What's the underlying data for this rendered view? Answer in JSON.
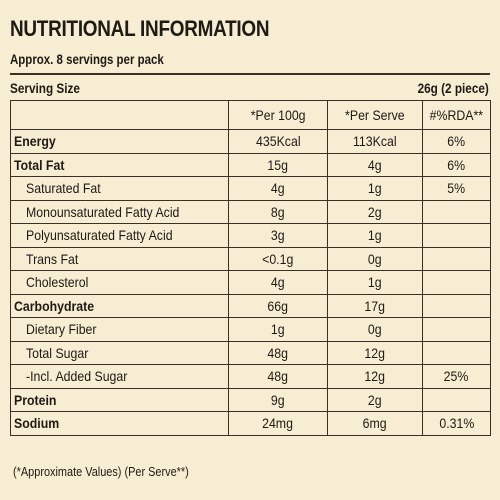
{
  "title": "NUTRITIONAL INFORMATION",
  "subtitle": "Approx. 8 servings per pack",
  "serving": {
    "label": "Serving Size",
    "value": "26g (2 piece)"
  },
  "columns": [
    "",
    "*Per 100g",
    "*Per Serve",
    "#%RDA**"
  ],
  "rows": [
    {
      "name": "Energy",
      "per100": "435Kcal",
      "perServe": "113Kcal",
      "rda": "6%",
      "bold": true,
      "sub": false
    },
    {
      "name": "Total Fat",
      "per100": "15g",
      "perServe": "4g",
      "rda": "6%",
      "bold": true,
      "sub": false
    },
    {
      "name": "Saturated Fat",
      "per100": "4g",
      "perServe": "1g",
      "rda": "5%",
      "bold": false,
      "sub": true
    },
    {
      "name": "Monounsaturated Fatty Acid",
      "per100": "8g",
      "perServe": "2g",
      "rda": "",
      "bold": false,
      "sub": true
    },
    {
      "name": "Polyunsaturated Fatty Acid",
      "per100": "3g",
      "perServe": "1g",
      "rda": "",
      "bold": false,
      "sub": true
    },
    {
      "name": "Trans Fat",
      "per100": "<0.1g",
      "perServe": "0g",
      "rda": "",
      "bold": false,
      "sub": true
    },
    {
      "name": "Cholesterol",
      "per100": "4g",
      "perServe": "1g",
      "rda": "",
      "bold": false,
      "sub": true
    },
    {
      "name": "Carbohydrate",
      "per100": "66g",
      "perServe": "17g",
      "rda": "",
      "bold": true,
      "sub": false
    },
    {
      "name": "Dietary Fiber",
      "per100": "1g",
      "perServe": "0g",
      "rda": "",
      "bold": false,
      "sub": true
    },
    {
      "name": "Total Sugar",
      "per100": "48g",
      "perServe": "12g",
      "rda": "",
      "bold": false,
      "sub": true
    },
    {
      "name": "-Incl. Added Sugar",
      "per100": "48g",
      "perServe": "12g",
      "rda": "25%",
      "bold": false,
      "sub": true
    },
    {
      "name": "Protein",
      "per100": "9g",
      "perServe": "2g",
      "rda": "",
      "bold": true,
      "sub": false
    },
    {
      "name": "Sodium",
      "per100": "24mg",
      "perServe": "6mg",
      "rda": "0.31%",
      "bold": true,
      "sub": false
    }
  ],
  "footnote": "(*Approximate Values) (Per Serve**)",
  "colors": {
    "background": "#f7edd3",
    "text": "#1e1a14",
    "border": "#3a3026"
  }
}
